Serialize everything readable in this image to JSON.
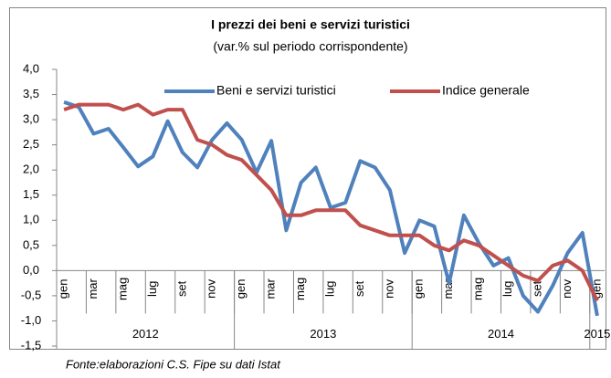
{
  "chart_data": {
    "type": "line",
    "title": "I prezzi dei beni e servizi turistici",
    "subtitle": "(var.% sul periodo corrispondente)",
    "source": "Fonte:elaborazioni C.S. Fipe su dati Istat",
    "categories": [
      "gen",
      null,
      "mar",
      null,
      "mag",
      null,
      "lug",
      null,
      "set",
      null,
      "nov",
      null,
      "gen",
      null,
      "mar",
      null,
      "mag",
      null,
      "lug",
      null,
      "set",
      null,
      "nov",
      null,
      "gen",
      null,
      "mar",
      null,
      "mag",
      null,
      "lug",
      null,
      "set",
      null,
      "nov",
      null,
      "gen"
    ],
    "category_groups": [
      "2012",
      "2013",
      "2014",
      "2015"
    ],
    "series": [
      {
        "name": "Beni e servizi turistici",
        "color": "#4f81bd",
        "values": [
          3.35,
          3.25,
          2.72,
          2.82,
          2.45,
          2.07,
          2.27,
          2.97,
          2.35,
          2.05,
          2.6,
          2.93,
          2.6,
          1.95,
          2.58,
          0.8,
          1.75,
          2.05,
          1.25,
          1.35,
          2.18,
          2.05,
          1.6,
          0.35,
          1.0,
          0.88,
          -0.25,
          1.1,
          0.55,
          0.1,
          0.25,
          -0.5,
          -0.82,
          -0.3,
          0.35,
          0.75,
          -0.9
        ]
      },
      {
        "name": "Indice generale",
        "color": "#c0504d",
        "values": [
          3.2,
          3.3,
          3.3,
          3.3,
          3.2,
          3.3,
          3.1,
          3.2,
          3.2,
          2.6,
          2.5,
          2.3,
          2.2,
          1.9,
          1.6,
          1.1,
          1.1,
          1.2,
          1.2,
          1.2,
          0.9,
          0.8,
          0.7,
          0.7,
          0.7,
          0.5,
          0.4,
          0.6,
          0.5,
          0.3,
          0.1,
          -0.1,
          -0.2,
          0.1,
          0.2,
          0.0,
          -0.6
        ]
      }
    ],
    "ylim": [
      -1.5,
      4
    ],
    "yticks": [
      {
        "value": -1.5,
        "label": "-1,5"
      },
      {
        "value": -1,
        "label": "-1,0"
      },
      {
        "value": -0.5,
        "label": "-0,5"
      },
      {
        "value": 0,
        "label": "0,0"
      },
      {
        "value": 0.5,
        "label": "0,5"
      },
      {
        "value": 1,
        "label": "1,0"
      },
      {
        "value": 1.5,
        "label": "1,5"
      },
      {
        "value": 2,
        "label": "2,0"
      },
      {
        "value": 2.5,
        "label": "2,5"
      },
      {
        "value": 3,
        "label": "3,0"
      },
      {
        "value": 3.5,
        "label": "3,5"
      },
      {
        "value": 4,
        "label": "4,0"
      }
    ],
    "legend": "top",
    "grid": false
  }
}
